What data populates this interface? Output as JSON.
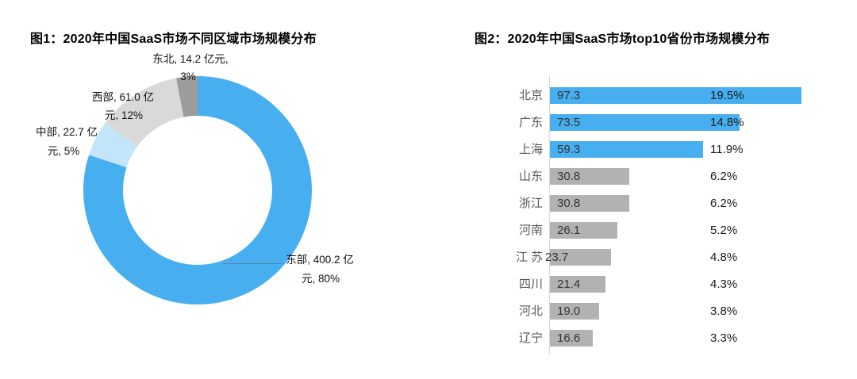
{
  "fig1": {
    "title": "图1：2020年中国SaaS市场不同区域市场规模分布",
    "labels": {
      "dongbei_l1": "东北, 14.2 亿元,",
      "dongbei_l2": "3%",
      "xibu_l1": "西部, 61.0 亿",
      "xibu_l2": "元, 12%",
      "zhongbu_l1": "中部, 22.7 亿",
      "zhongbu_l2": "元, 5%",
      "dongbu_l1": "东部, 400.2 亿",
      "dongbu_l2": "元, 80%"
    },
    "colors": {
      "east": "#47AEF0",
      "central": "#C3E5FA",
      "west": "#D9D9D9",
      "northeast": "#9C9C9C"
    }
  },
  "fig2": {
    "title": "图2：2020年中国SaaS市场top10省份市场规模分布",
    "highlight_count": 3,
    "colors": {
      "highlight": "#47AEF0",
      "normal": "#B2B2B2",
      "axis": "#D9D9D9"
    },
    "rows": [
      {
        "province": "北京",
        "value": "97.3",
        "percent": "19.5%"
      },
      {
        "province": "广东",
        "value": "73.5",
        "percent": "14.8%"
      },
      {
        "province": "上海",
        "value": "59.3",
        "percent": "11.9%"
      },
      {
        "province": "山东",
        "value": "30.8",
        "percent": "6.2%"
      },
      {
        "province": "浙江",
        "value": "30.8",
        "percent": "6.2%"
      },
      {
        "province": "河南",
        "value": "26.1",
        "percent": "5.2%"
      },
      {
        "province": "江 苏",
        "value": "23.7",
        "percent": "4.8%"
      },
      {
        "province": "四川",
        "value": "21.4",
        "percent": "4.3%"
      },
      {
        "province": "河北",
        "value": "19.0",
        "percent": "3.8%"
      },
      {
        "province": "辽宁",
        "value": "16.6",
        "percent": "3.3%"
      }
    ]
  },
  "chart_data": [
    {
      "type": "pie",
      "subtype": "donut",
      "title": "图1：2020年中国SaaS市场不同区域市场规模分布",
      "unit": "亿元",
      "labels": [
        "东部",
        "中部",
        "西部",
        "东北"
      ],
      "values": [
        400.2,
        22.7,
        61.0,
        14.2
      ],
      "percents": [
        80,
        5,
        12,
        3
      ],
      "colors": [
        "#47AEF0",
        "#C3E5FA",
        "#D9D9D9",
        "#9C9C9C"
      ],
      "start_angle_deg": 0,
      "direction": "clockwise",
      "inner_radius_ratio": 0.65,
      "legend": "none",
      "data_labels": "outside, format: 名称, 值 亿元, 百分比"
    },
    {
      "type": "bar",
      "subtype": "horizontal",
      "title": "图2：2020年中国SaaS市场top10省份市场规模分布",
      "unit": "亿元",
      "categories": [
        "北京",
        "广东",
        "上海",
        "山东",
        "浙江",
        "河南",
        "江苏",
        "四川",
        "河北",
        "辽宁"
      ],
      "values": [
        97.3,
        73.5,
        59.3,
        30.8,
        30.8,
        26.1,
        23.7,
        21.4,
        19.0,
        16.6
      ],
      "percent_labels": [
        "19.5%",
        "14.8%",
        "11.9%",
        "6.2%",
        "6.2%",
        "5.2%",
        "4.8%",
        "4.3%",
        "3.8%",
        "3.3%"
      ],
      "xlim": [
        0,
        100
      ],
      "grid": false,
      "legend": "none",
      "highlighted_bars": [
        "北京",
        "广东",
        "上海"
      ]
    }
  ]
}
